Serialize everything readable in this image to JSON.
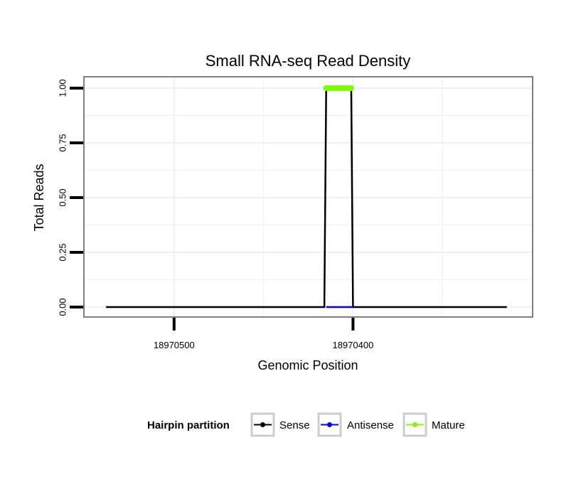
{
  "chart_data": {
    "type": "line",
    "title": "Small RNA-seq Read Density",
    "xlabel": "Genomic Position",
    "ylabel": "Total Reads",
    "x_reversed": true,
    "xlim": [
      18970550,
      18970300
    ],
    "ylim": [
      0,
      1
    ],
    "x_ticks": [
      {
        "value": 18970500,
        "label": "18970500"
      },
      {
        "value": 18970400,
        "label": "18970400"
      }
    ],
    "y_ticks": [
      {
        "value": 0,
        "label": "0.00"
      },
      {
        "value": 0.25,
        "label": "0.25"
      },
      {
        "value": 0.5,
        "label": "0.50"
      },
      {
        "value": 0.75,
        "label": "0.75"
      },
      {
        "value": 1,
        "label": "1.00"
      }
    ],
    "grid": true,
    "legend": {
      "title": "Hairpin partition",
      "position": "bottom",
      "entries": [
        {
          "name": "Sense",
          "color": "#000000"
        },
        {
          "name": "Antisense",
          "color": "#0000ff"
        },
        {
          "name": "Mature",
          "color": "#7cfc00"
        }
      ]
    },
    "series": [
      {
        "name": "Sense",
        "color": "#000000",
        "points": [
          [
            18970538,
            0
          ],
          [
            18970416,
            0
          ],
          [
            18970415,
            1
          ],
          [
            18970401,
            1
          ],
          [
            18970400,
            0
          ],
          [
            18970314,
            0
          ]
        ]
      },
      {
        "name": "Antisense",
        "color": "#0000ff",
        "points": [
          [
            18970415,
            0
          ],
          [
            18970400,
            0
          ]
        ]
      },
      {
        "name": "Mature",
        "color": "#7cfc00",
        "points": [
          [
            18970415,
            1
          ],
          [
            18970401,
            1
          ]
        ]
      }
    ]
  }
}
